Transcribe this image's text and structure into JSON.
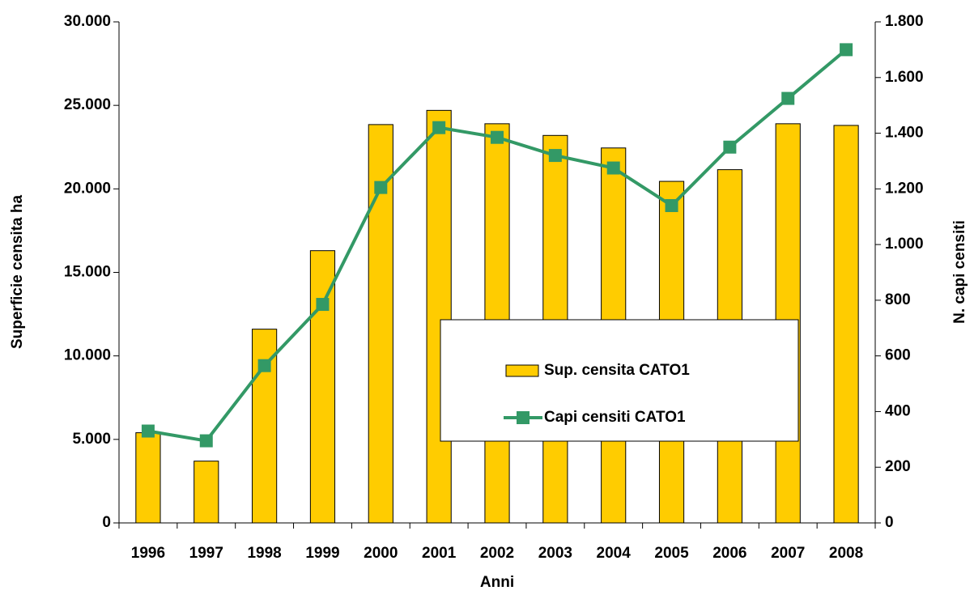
{
  "chart_data": {
    "type": "bar-line",
    "x_label": "Anni",
    "y_label": "Superficie censita ha",
    "y2_label": "N. capi censiti",
    "categories": [
      "1996",
      "1997",
      "1998",
      "1999",
      "2000",
      "2001",
      "2002",
      "2003",
      "2004",
      "2005",
      "2006",
      "2007",
      "2008"
    ],
    "series": [
      {
        "name": "Sup. censita CATO1",
        "type": "bar",
        "color": "#ffcc00",
        "values": [
          5400,
          3700,
          11600,
          16300,
          23850,
          24700,
          23900,
          23200,
          22450,
          20450,
          21150,
          23900,
          23800
        ]
      },
      {
        "name": "Capi censiti CATO1",
        "type": "line",
        "axis": "y2",
        "color": "#339966",
        "values": [
          330,
          295,
          565,
          785,
          1205,
          1420,
          1385,
          1320,
          1275,
          1140,
          1350,
          1525,
          1700
        ]
      }
    ],
    "ylim": [
      0,
      30000
    ],
    "yticks": [
      0,
      {
        "value": 5000,
        "label": "5.000"
      },
      {
        "value": 10000,
        "label": "10.000"
      },
      {
        "value": 15000,
        "label": "15.000"
      },
      {
        "value": 20000,
        "label": "20.000"
      },
      {
        "value": 25000,
        "label": "25.000"
      },
      {
        "value": 30000,
        "label": "30.000"
      }
    ],
    "y2lim": [
      0,
      1800
    ],
    "y2ticks": [
      0,
      200,
      400,
      600,
      800,
      {
        "value": 1000,
        "label": "1.000"
      },
      {
        "value": 1200,
        "label": "1.200"
      },
      {
        "value": 1400,
        "label": "1.400"
      },
      {
        "value": 1600,
        "label": "1.600"
      },
      {
        "value": 1800,
        "label": "1.800"
      }
    ],
    "grid": false,
    "legend": "center-right"
  }
}
